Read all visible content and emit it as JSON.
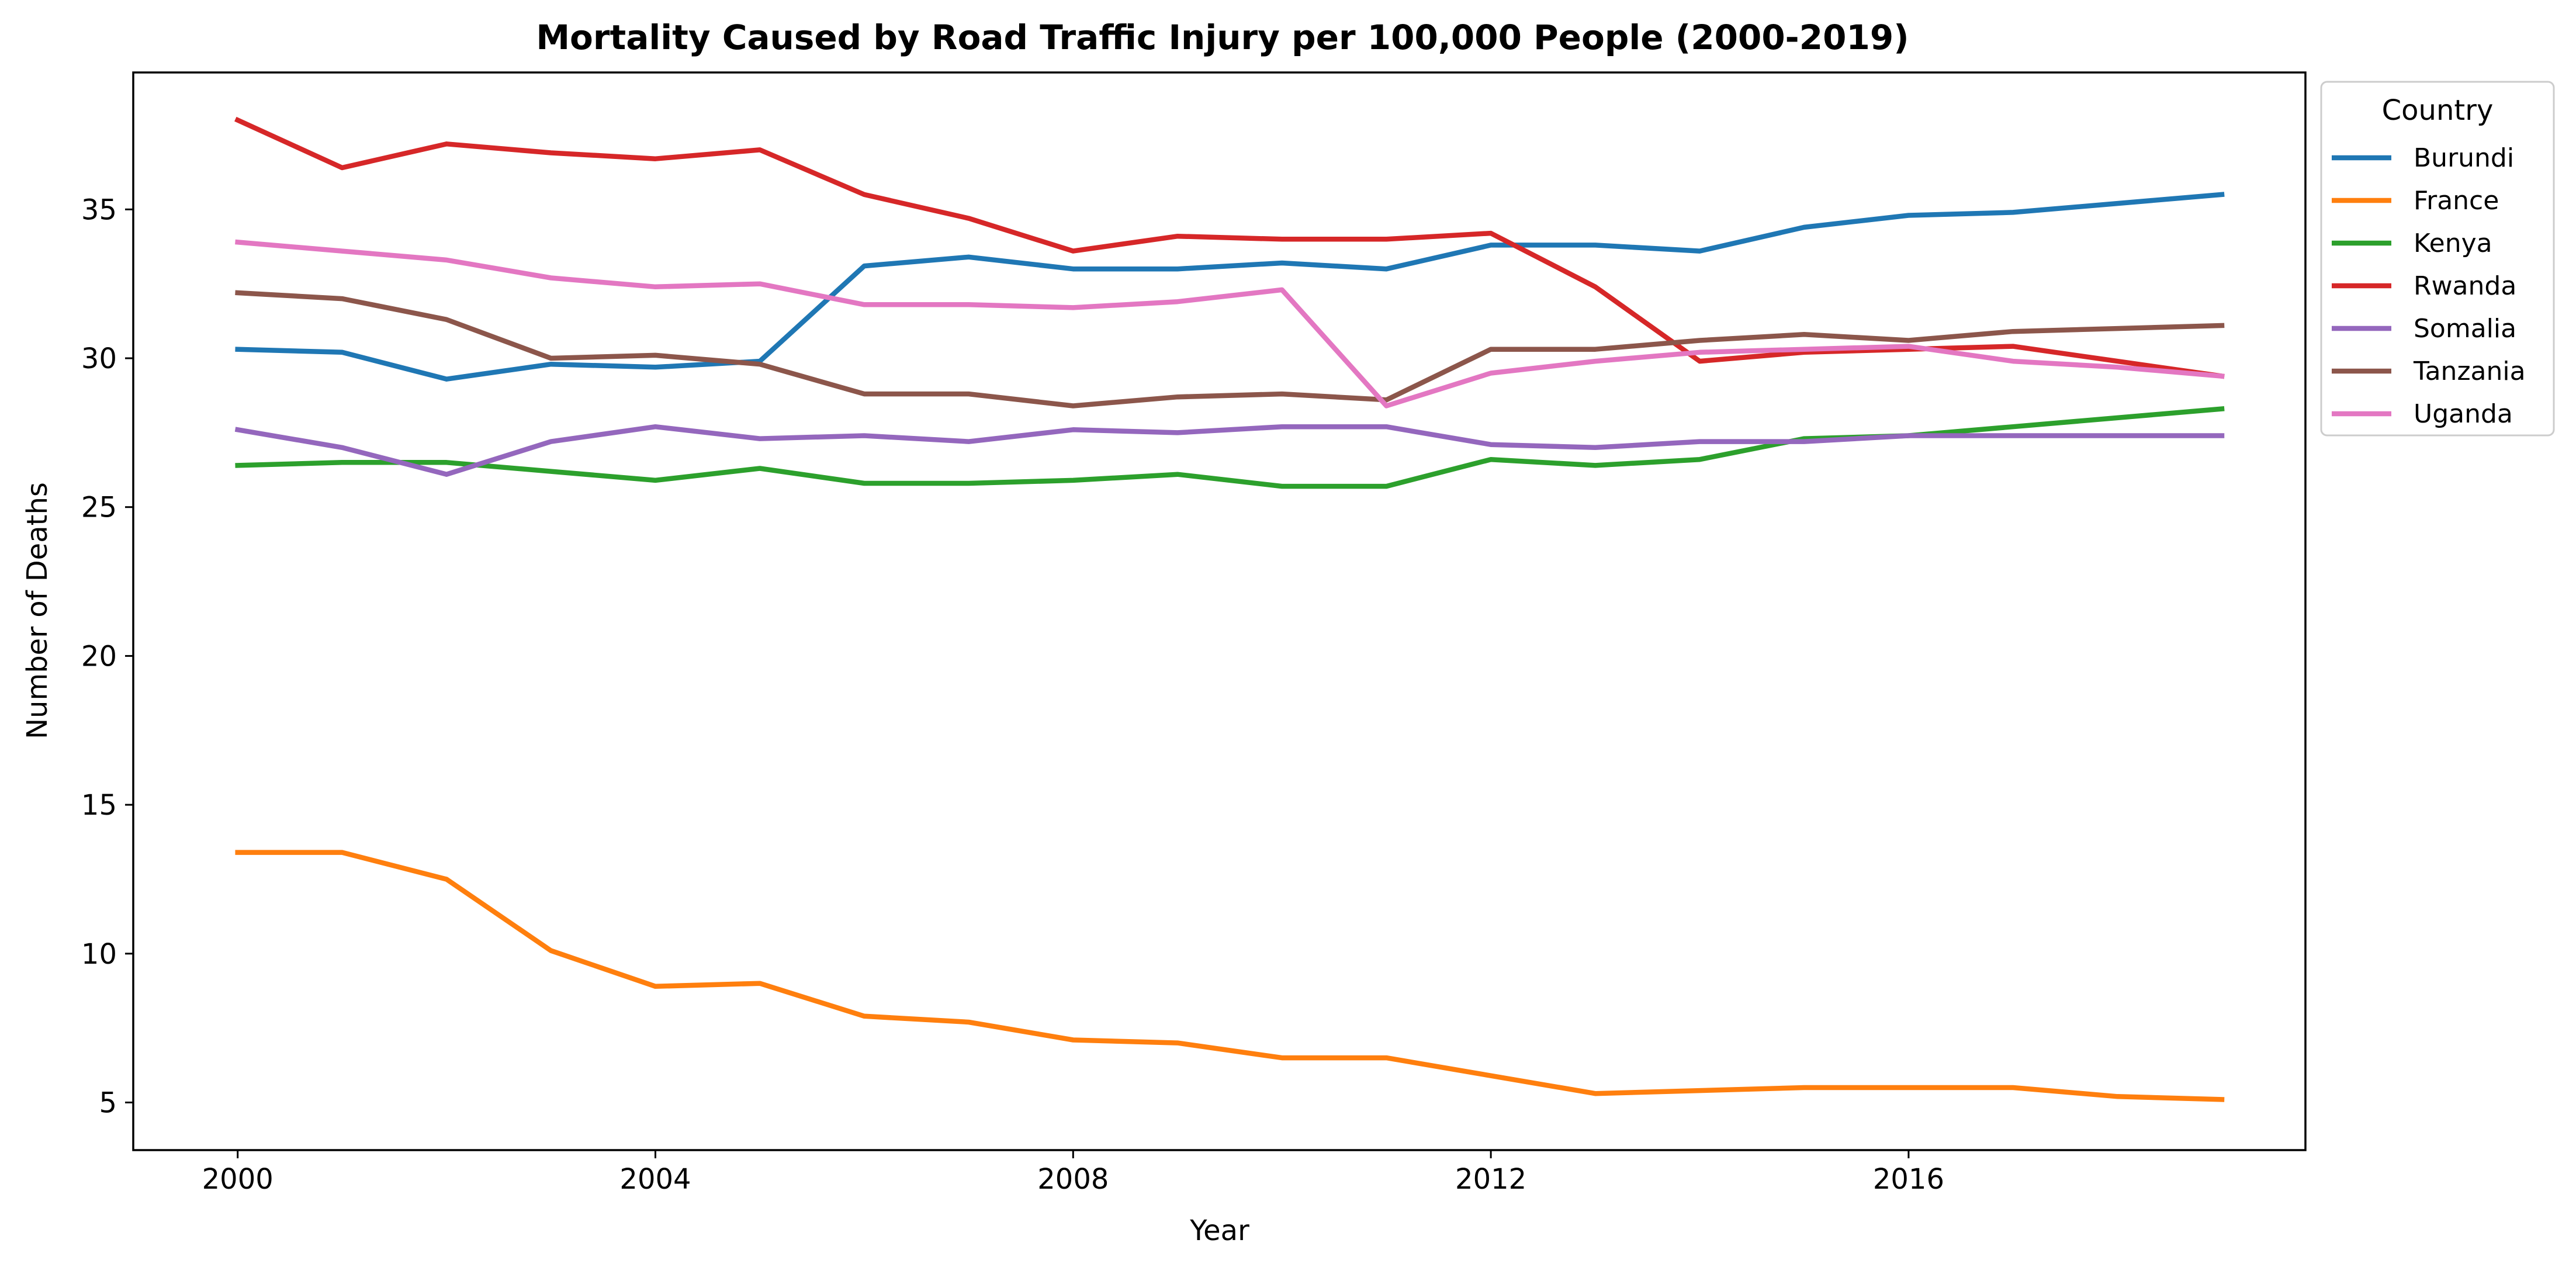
{
  "chart_data": {
    "type": "line",
    "title": "Mortality Caused by Road Traffic Injury per 100,000 People (2000-2019)",
    "xlabel": "Year",
    "ylabel": "Number of Deaths",
    "x": [
      2000,
      2001,
      2002,
      2003,
      2004,
      2005,
      2006,
      2007,
      2008,
      2009,
      2010,
      2011,
      2012,
      2013,
      2014,
      2015,
      2016,
      2017,
      2018,
      2019
    ],
    "xticks": [
      2000,
      2004,
      2008,
      2012,
      2016
    ],
    "yticks": [
      5,
      10,
      15,
      20,
      25,
      30,
      35
    ],
    "xlim": [
      1999,
      2019.8
    ],
    "ylim": [
      3.4,
      39.6
    ],
    "grid": false,
    "legend": {
      "title": "Country",
      "placement": "outside-upper-right"
    },
    "series": [
      {
        "name": "Burundi",
        "color": "#1f77b4",
        "values": [
          30.3,
          30.2,
          29.3,
          29.8,
          29.7,
          29.9,
          33.1,
          33.4,
          33.0,
          33.0,
          33.2,
          33.0,
          33.8,
          33.8,
          33.6,
          34.4,
          34.8,
          34.9,
          35.2,
          35.5
        ]
      },
      {
        "name": "France",
        "color": "#ff7f0e",
        "values": [
          13.4,
          13.4,
          12.5,
          10.1,
          8.9,
          9.0,
          7.9,
          7.7,
          7.1,
          7.0,
          6.5,
          6.5,
          5.9,
          5.3,
          5.4,
          5.5,
          5.5,
          5.5,
          5.2,
          5.1
        ]
      },
      {
        "name": "Kenya",
        "color": "#2ca02c",
        "values": [
          26.4,
          26.5,
          26.5,
          26.2,
          25.9,
          26.3,
          25.8,
          25.8,
          25.9,
          26.1,
          25.7,
          25.7,
          26.6,
          26.4,
          26.6,
          27.3,
          27.4,
          27.7,
          28.0,
          28.3
        ]
      },
      {
        "name": "Rwanda",
        "color": "#d62728",
        "values": [
          38.0,
          36.4,
          37.2,
          36.9,
          36.7,
          37.0,
          35.5,
          34.7,
          33.6,
          34.1,
          34.0,
          34.0,
          34.2,
          32.4,
          29.9,
          30.2,
          30.3,
          30.4,
          29.9,
          29.4
        ]
      },
      {
        "name": "Somalia",
        "color": "#9467bd",
        "values": [
          27.6,
          27.0,
          26.1,
          27.2,
          27.7,
          27.3,
          27.4,
          27.2,
          27.6,
          27.5,
          27.7,
          27.7,
          27.1,
          27.0,
          27.2,
          27.2,
          27.4,
          27.4,
          27.4,
          27.4
        ]
      },
      {
        "name": "Tanzania",
        "color": "#8c564b",
        "values": [
          32.2,
          32.0,
          31.3,
          30.0,
          30.1,
          29.8,
          28.8,
          28.8,
          28.4,
          28.7,
          28.8,
          28.6,
          30.3,
          30.3,
          30.6,
          30.8,
          30.6,
          30.9,
          31.0,
          31.1
        ]
      },
      {
        "name": "Uganda",
        "color": "#e377c2",
        "values": [
          33.9,
          33.6,
          33.3,
          32.7,
          32.4,
          32.5,
          31.8,
          31.8,
          31.7,
          31.9,
          32.3,
          28.4,
          29.5,
          29.9,
          30.2,
          30.3,
          30.4,
          29.9,
          29.7,
          29.4
        ]
      }
    ]
  }
}
